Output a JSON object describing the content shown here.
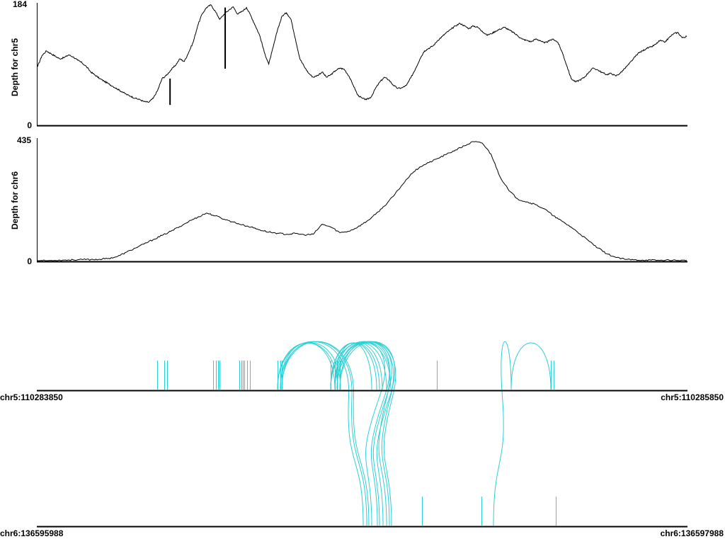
{
  "chart_data": [
    {
      "type": "line",
      "ylabel": "Depth for chr5",
      "ylim": [
        0,
        184
      ],
      "ytick_labels": [
        "0",
        "184"
      ],
      "color": "#000000",
      "points": [
        [
          0,
          88
        ],
        [
          1,
          105
        ],
        [
          2,
          112
        ],
        [
          3,
          108
        ],
        [
          4,
          104
        ],
        [
          5,
          100
        ],
        [
          6,
          102
        ],
        [
          7,
          106
        ],
        [
          8,
          103
        ],
        [
          9,
          98
        ],
        [
          10,
          94
        ],
        [
          11,
          88
        ],
        [
          12,
          80
        ],
        [
          13,
          75
        ],
        [
          14,
          70
        ],
        [
          15,
          66
        ],
        [
          16,
          62
        ],
        [
          17,
          58
        ],
        [
          18,
          54
        ],
        [
          19,
          50
        ],
        [
          20,
          46
        ],
        [
          21,
          43
        ],
        [
          22,
          40
        ],
        [
          23,
          38
        ],
        [
          24,
          35
        ],
        [
          25,
          34
        ],
        [
          26,
          40
        ],
        [
          27,
          52
        ],
        [
          28,
          70
        ],
        [
          29,
          75
        ],
        [
          30,
          83
        ],
        [
          31,
          90
        ],
        [
          32,
          100
        ],
        [
          33,
          96
        ],
        [
          34,
          110
        ],
        [
          35,
          125
        ],
        [
          36,
          150
        ],
        [
          37,
          168
        ],
        [
          38,
          178
        ],
        [
          39,
          182
        ],
        [
          40,
          172
        ],
        [
          41,
          160
        ],
        [
          42,
          168
        ],
        [
          43,
          174
        ],
        [
          44,
          179
        ],
        [
          45,
          168
        ],
        [
          46,
          172
        ],
        [
          47,
          178
        ],
        [
          48,
          165
        ],
        [
          49,
          150
        ],
        [
          50,
          135
        ],
        [
          51,
          110
        ],
        [
          52,
          92
        ],
        [
          53,
          118
        ],
        [
          54,
          145
        ],
        [
          55,
          165
        ],
        [
          56,
          170
        ],
        [
          57,
          160
        ],
        [
          58,
          130
        ],
        [
          59,
          100
        ],
        [
          60,
          88
        ],
        [
          61,
          78
        ],
        [
          62,
          72
        ],
        [
          63,
          75
        ],
        [
          64,
          80
        ],
        [
          65,
          72
        ],
        [
          66,
          76
        ],
        [
          67,
          82
        ],
        [
          68,
          86
        ],
        [
          69,
          84
        ],
        [
          70,
          74
        ],
        [
          71,
          60
        ],
        [
          72,
          45
        ],
        [
          73,
          40
        ],
        [
          74,
          38
        ],
        [
          75,
          42
        ],
        [
          76,
          55
        ],
        [
          77,
          65
        ],
        [
          78,
          72
        ],
        [
          79,
          68
        ],
        [
          80,
          60
        ],
        [
          81,
          55
        ],
        [
          82,
          56
        ],
        [
          83,
          60
        ],
        [
          84,
          72
        ],
        [
          85,
          85
        ],
        [
          86,
          100
        ],
        [
          87,
          112
        ],
        [
          88,
          116
        ],
        [
          89,
          120
        ],
        [
          90,
          128
        ],
        [
          91,
          134
        ],
        [
          92,
          140
        ],
        [
          93,
          145
        ],
        [
          94,
          150
        ],
        [
          95,
          154
        ],
        [
          96,
          150
        ],
        [
          97,
          146
        ],
        [
          98,
          150
        ],
        [
          99,
          148
        ],
        [
          100,
          142
        ],
        [
          101,
          136
        ],
        [
          102,
          138
        ],
        [
          103,
          142
        ],
        [
          104,
          145
        ],
        [
          105,
          148
        ],
        [
          106,
          144
        ],
        [
          107,
          140
        ],
        [
          108,
          135
        ],
        [
          109,
          130
        ],
        [
          110,
          128
        ],
        [
          111,
          126
        ],
        [
          112,
          130
        ],
        [
          113,
          128
        ],
        [
          114,
          124
        ],
        [
          115,
          127
        ],
        [
          116,
          130
        ],
        [
          117,
          125
        ],
        [
          118,
          110
        ],
        [
          119,
          90
        ],
        [
          120,
          70
        ],
        [
          121,
          65
        ],
        [
          122,
          68
        ],
        [
          123,
          72
        ],
        [
          124,
          80
        ],
        [
          125,
          86
        ],
        [
          126,
          83
        ],
        [
          127,
          79
        ],
        [
          128,
          76
        ],
        [
          129,
          78
        ],
        [
          130,
          74
        ],
        [
          131,
          78
        ],
        [
          132,
          85
        ],
        [
          133,
          92
        ],
        [
          134,
          100
        ],
        [
          135,
          108
        ],
        [
          136,
          112
        ],
        [
          137,
          116
        ],
        [
          138,
          118
        ],
        [
          139,
          122
        ],
        [
          140,
          128
        ],
        [
          141,
          125
        ],
        [
          142,
          132
        ],
        [
          143,
          138
        ],
        [
          144,
          140
        ],
        [
          145,
          132
        ],
        [
          146,
          134
        ]
      ],
      "x_range": [
        0,
        146
      ],
      "spikes": [
        {
          "x": 29.8,
          "low": 30,
          "high": 70
        },
        {
          "x": 42.2,
          "low": 85,
          "high": 178
        }
      ]
    },
    {
      "type": "line",
      "ylabel": "Depth for chr6",
      "ylim": [
        0,
        435
      ],
      "ytick_labels": [
        "0",
        "435"
      ],
      "color": "#000000",
      "points": [
        [
          0,
          0
        ],
        [
          2,
          0
        ],
        [
          4,
          1
        ],
        [
          6,
          2
        ],
        [
          8,
          3
        ],
        [
          10,
          4
        ],
        [
          12,
          4
        ],
        [
          14,
          5
        ],
        [
          16,
          8
        ],
        [
          18,
          15
        ],
        [
          20,
          30
        ],
        [
          22,
          45
        ],
        [
          24,
          60
        ],
        [
          26,
          75
        ],
        [
          28,
          90
        ],
        [
          30,
          105
        ],
        [
          32,
          122
        ],
        [
          34,
          140
        ],
        [
          36,
          155
        ],
        [
          38,
          170
        ],
        [
          40,
          160
        ],
        [
          42,
          148
        ],
        [
          44,
          138
        ],
        [
          46,
          128
        ],
        [
          48,
          120
        ],
        [
          50,
          110
        ],
        [
          52,
          102
        ],
        [
          54,
          98
        ],
        [
          56,
          94
        ],
        [
          58,
          97
        ],
        [
          60,
          92
        ],
        [
          62,
          94
        ],
        [
          64,
          130
        ],
        [
          66,
          120
        ],
        [
          68,
          100
        ],
        [
          70,
          105
        ],
        [
          72,
          120
        ],
        [
          74,
          140
        ],
        [
          76,
          165
        ],
        [
          78,
          195
        ],
        [
          80,
          230
        ],
        [
          82,
          270
        ],
        [
          84,
          310
        ],
        [
          86,
          335
        ],
        [
          88,
          350
        ],
        [
          90,
          365
        ],
        [
          92,
          380
        ],
        [
          94,
          395
        ],
        [
          96,
          410
        ],
        [
          98,
          425
        ],
        [
          100,
          420
        ],
        [
          102,
          380
        ],
        [
          104,
          300
        ],
        [
          106,
          250
        ],
        [
          108,
          220
        ],
        [
          110,
          210
        ],
        [
          112,
          200
        ],
        [
          114,
          185
        ],
        [
          116,
          160
        ],
        [
          118,
          140
        ],
        [
          120,
          120
        ],
        [
          122,
          95
        ],
        [
          124,
          70
        ],
        [
          126,
          45
        ],
        [
          128,
          25
        ],
        [
          130,
          12
        ],
        [
          132,
          5
        ],
        [
          134,
          3
        ],
        [
          136,
          2
        ],
        [
          138,
          2
        ],
        [
          140,
          1
        ],
        [
          142,
          2
        ],
        [
          144,
          1
        ],
        [
          146,
          1
        ]
      ],
      "x_range": [
        0,
        146
      ]
    },
    {
      "type": "arc",
      "top_label_left": "chr5:110283850",
      "top_label_right": "chr5:110285850",
      "bottom_label_left": "chr6:136595988",
      "bottom_label_right": "chr6:136597988",
      "color": "#2ccfd6",
      "chr5_marks": [
        222,
        232,
        236,
        301,
        305,
        308,
        310,
        338,
        341,
        343,
        345,
        349,
        353,
        392,
        396,
        398,
        467,
        473,
        476,
        480,
        617,
        778,
        782
      ],
      "chr6_marks": [
        596,
        680,
        785
      ],
      "intra_arcs": [
        [
          392,
          477
        ],
        [
          398,
          481
        ],
        [
          396,
          473
        ],
        [
          467,
          532
        ],
        [
          473,
          540
        ],
        [
          476,
          546
        ],
        [
          480,
          552
        ],
        [
          467,
          536
        ],
        [
          473,
          525
        ],
        [
          778,
          722
        ]
      ],
      "inter_arcs": [
        [
          392,
          513
        ],
        [
          396,
          518
        ],
        [
          398,
          521
        ],
        [
          467,
          525
        ],
        [
          473,
          533
        ],
        [
          476,
          536
        ],
        [
          480,
          541
        ],
        [
          467,
          546
        ],
        [
          473,
          550
        ],
        [
          476,
          553
        ],
        [
          722,
          697
        ]
      ]
    }
  ]
}
